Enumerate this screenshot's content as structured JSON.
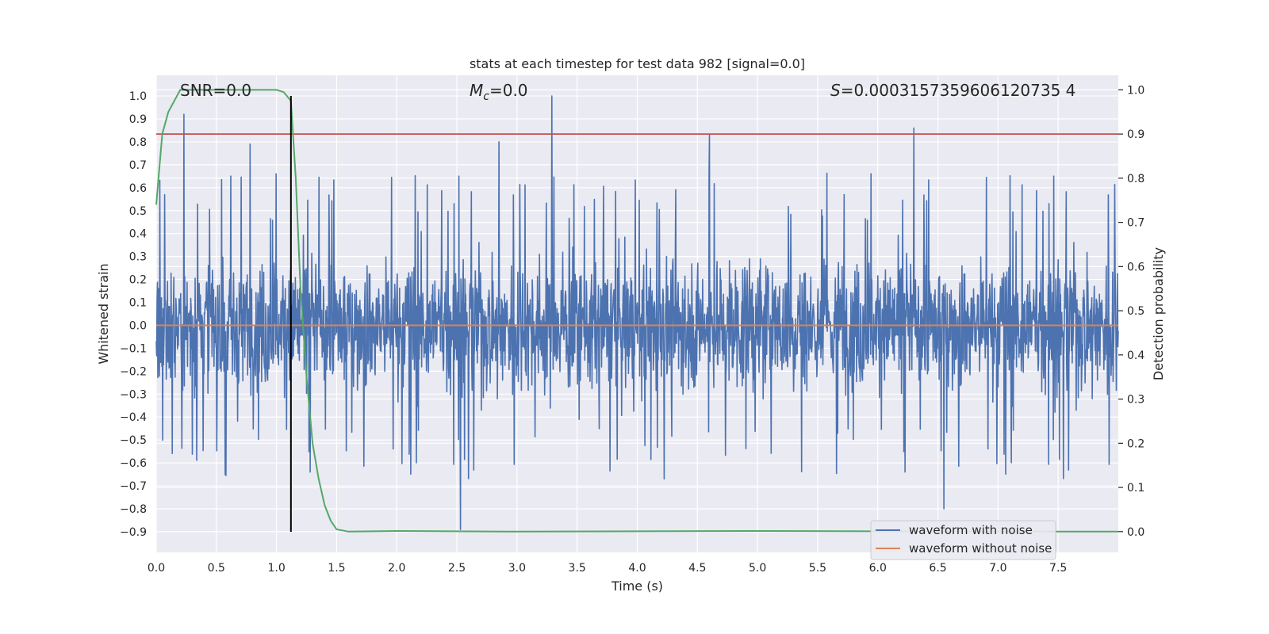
{
  "chart_data": {
    "type": "line",
    "title": "stats at each timestep for test data 982 [signal=0.0]",
    "xlabel": "Time (s)",
    "ylabel": "Whitened strain",
    "y2label": "Detection probability",
    "xlim": [
      0.0,
      8.0
    ],
    "ylim": [
      -0.99,
      1.09
    ],
    "y2lim": [
      -0.047,
      1.033
    ],
    "x_ticks": [
      "0.0",
      "0.5",
      "1.0",
      "1.5",
      "2.0",
      "2.5",
      "3.0",
      "3.5",
      "4.0",
      "4.5",
      "5.0",
      "5.5",
      "6.0",
      "6.5",
      "7.0",
      "7.5"
    ],
    "x_tick_values": [
      0.0,
      0.5,
      1.0,
      1.5,
      2.0,
      2.5,
      3.0,
      3.5,
      4.0,
      4.5,
      5.0,
      5.5,
      6.0,
      6.5,
      7.0,
      7.5
    ],
    "y_ticks": [
      "1.0",
      "0.9",
      "0.8",
      "0.7",
      "0.6",
      "0.5",
      "0.4",
      "0.3",
      "0.2",
      "0.1",
      "0.0",
      "−0.1",
      "−0.2",
      "−0.3",
      "−0.4",
      "−0.5",
      "−0.6",
      "−0.7",
      "−0.8",
      "−0.9"
    ],
    "y_tick_values": [
      1.0,
      0.9,
      0.8,
      0.7,
      0.6,
      0.5,
      0.4,
      0.3,
      0.2,
      0.1,
      0.0,
      -0.1,
      -0.2,
      -0.3,
      -0.4,
      -0.5,
      -0.6,
      -0.7,
      -0.8,
      -0.9
    ],
    "y2_ticks": [
      "1.0",
      "0.9",
      "0.8",
      "0.7",
      "0.6",
      "0.5",
      "0.4",
      "0.3",
      "0.2",
      "0.1",
      "0.0"
    ],
    "y2_tick_values": [
      1.0,
      0.9,
      0.8,
      0.7,
      0.6,
      0.5,
      0.4,
      0.3,
      0.2,
      0.1,
      0.0
    ],
    "annotations": {
      "snr": "SNR=0.0",
      "mc_symbol": "M",
      "mc_subscript": "c",
      "mc_value": "=0.0",
      "s_symbol": "S",
      "s_value": "=0.0003157359606120735 4"
    },
    "series": [
      {
        "name": "waveform with noise",
        "color": "#4c72b0",
        "axis": "left",
        "description": "noisy whitened strain, approx. range -0.9 to 1.0",
        "peaks": [
          {
            "x": 0.23,
            "y": 0.92
          },
          {
            "x": 0.78,
            "y": 0.79
          },
          {
            "x": 2.85,
            "y": 0.8
          },
          {
            "x": 3.29,
            "y": 1.0
          },
          {
            "x": 4.6,
            "y": 0.83
          },
          {
            "x": 6.3,
            "y": 0.86
          },
          {
            "x": 2.53,
            "y": -0.89
          },
          {
            "x": 6.55,
            "y": -0.8
          }
        ]
      },
      {
        "name": "waveform without noise",
        "color": "#dd8452",
        "axis": "left",
        "x": [
          0.0,
          8.0
        ],
        "y": [
          0.0,
          0.0
        ]
      },
      {
        "name": "detection probability",
        "color": "#55a868",
        "axis": "right",
        "x": [
          0.0,
          0.05,
          0.1,
          0.2,
          0.5,
          1.0,
          1.06,
          1.12,
          1.16,
          1.2,
          1.25,
          1.3,
          1.35,
          1.4,
          1.45,
          1.5,
          1.6,
          2.0,
          3.0,
          5.0,
          7.0,
          8.0
        ],
        "y": [
          0.74,
          0.9,
          0.95,
          1.0,
          1.0,
          1.0,
          0.995,
          0.975,
          0.8,
          0.55,
          0.35,
          0.2,
          0.12,
          0.06,
          0.025,
          0.005,
          0.0,
          0.0015,
          0.0,
          0.0015,
          0.0,
          0.0
        ]
      }
    ],
    "threshold": {
      "axis": "right",
      "value": 0.9,
      "color": "#c44e52"
    },
    "marker_line": {
      "x": 1.12,
      "y_from": -0.9,
      "y_to": 1.0,
      "color": "#000000"
    },
    "legend": {
      "placement": "lower-right",
      "entries": [
        {
          "label": "waveform with noise",
          "color": "#4c72b0"
        },
        {
          "label": "waveform without noise",
          "color": "#dd8452"
        }
      ]
    },
    "colors": {
      "plot_bg": "#eaeaf2",
      "grid": "#ffffff",
      "text": "#262626"
    }
  }
}
